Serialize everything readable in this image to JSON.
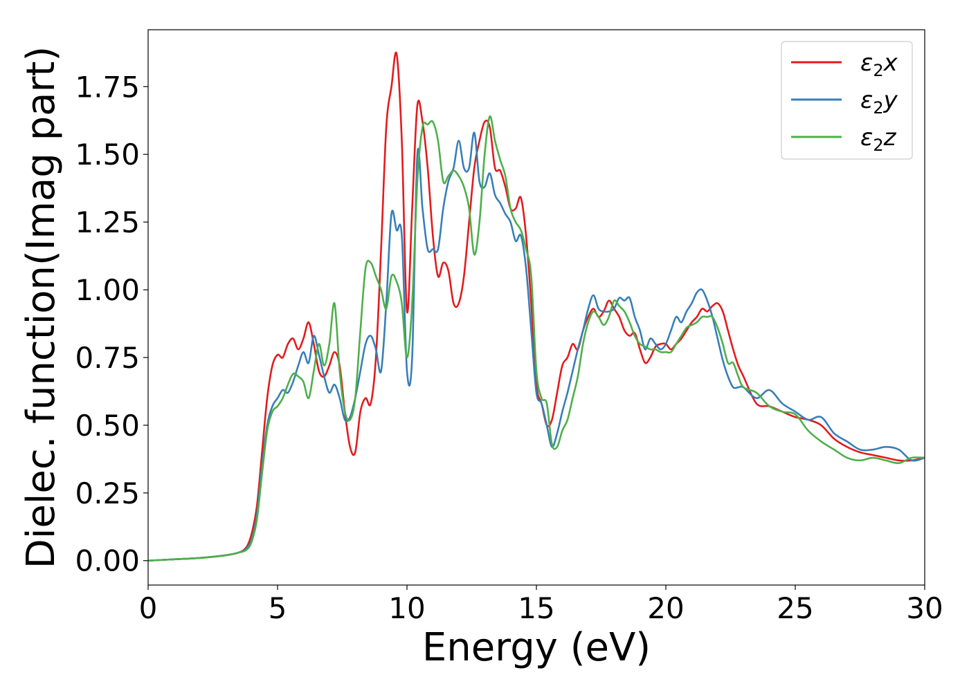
{
  "chart_data": {
    "type": "line",
    "title": "",
    "xlabel": "Energy (eV)",
    "ylabel": "Dielec. function(Imag part)",
    "xlim": [
      0,
      30
    ],
    "ylim": [
      -0.09,
      1.96
    ],
    "xticks": [
      0,
      5,
      10,
      15,
      20,
      25,
      30
    ],
    "xtick_labels": [
      "0",
      "5",
      "10",
      "15",
      "20",
      "25",
      "30"
    ],
    "yticks": [
      0.0,
      0.25,
      0.5,
      0.75,
      1.0,
      1.25,
      1.5,
      1.75
    ],
    "ytick_labels": [
      "0.00",
      "0.25",
      "0.50",
      "0.75",
      "1.00",
      "1.25",
      "1.50",
      "1.75"
    ],
    "grid": false,
    "legend_position": "top-right",
    "series": [
      {
        "name": "ε2x",
        "legend_base": "ε",
        "legend_sub": "2",
        "legend_var": "x",
        "color": "#e41a1c",
        "x": [
          0,
          1,
          2,
          3,
          3.5,
          3.8,
          4.0,
          4.2,
          4.4,
          4.6,
          4.8,
          5.0,
          5.2,
          5.4,
          5.6,
          5.8,
          6.0,
          6.2,
          6.4,
          6.6,
          6.8,
          7.0,
          7.2,
          7.4,
          7.6,
          7.8,
          8.0,
          8.2,
          8.4,
          8.6,
          8.8,
          9.0,
          9.2,
          9.4,
          9.6,
          9.8,
          10.0,
          10.2,
          10.4,
          10.6,
          10.8,
          11.0,
          11.2,
          11.4,
          11.6,
          11.8,
          12.0,
          12.2,
          12.4,
          12.6,
          12.8,
          13.0,
          13.2,
          13.4,
          13.6,
          13.8,
          14.0,
          14.2,
          14.4,
          14.6,
          14.8,
          15.0,
          15.2,
          15.4,
          15.6,
          15.8,
          16.0,
          16.2,
          16.4,
          16.6,
          16.8,
          17.0,
          17.2,
          17.4,
          17.6,
          17.8,
          18.0,
          18.2,
          18.4,
          18.6,
          18.8,
          19.0,
          19.2,
          19.4,
          19.6,
          19.8,
          20.0,
          20.2,
          20.4,
          20.6,
          20.8,
          21.0,
          21.2,
          21.4,
          21.6,
          21.8,
          22.0,
          22.2,
          22.4,
          22.6,
          22.8,
          23.0,
          23.5,
          24.0,
          24.5,
          25.0,
          25.5,
          26.0,
          26.5,
          27.0,
          27.5,
          28.0,
          28.5,
          29.0,
          29.5,
          30.0
        ],
        "y": [
          0.0,
          0.005,
          0.01,
          0.02,
          0.03,
          0.05,
          0.1,
          0.2,
          0.4,
          0.6,
          0.72,
          0.76,
          0.75,
          0.8,
          0.82,
          0.78,
          0.82,
          0.88,
          0.8,
          0.7,
          0.68,
          0.72,
          0.77,
          0.72,
          0.55,
          0.42,
          0.4,
          0.55,
          0.6,
          0.58,
          0.75,
          1.15,
          1.6,
          1.75,
          1.87,
          1.55,
          0.92,
          1.3,
          1.68,
          1.62,
          1.45,
          1.2,
          1.05,
          1.1,
          1.07,
          0.95,
          0.95,
          1.05,
          1.25,
          1.45,
          1.55,
          1.62,
          1.6,
          1.45,
          1.44,
          1.38,
          1.3,
          1.3,
          1.34,
          1.2,
          0.95,
          0.65,
          0.58,
          0.5,
          0.52,
          0.62,
          0.72,
          0.75,
          0.8,
          0.78,
          0.85,
          0.9,
          0.93,
          0.9,
          0.92,
          0.96,
          0.93,
          0.9,
          0.85,
          0.83,
          0.84,
          0.78,
          0.73,
          0.75,
          0.79,
          0.8,
          0.8,
          0.78,
          0.8,
          0.82,
          0.85,
          0.88,
          0.9,
          0.93,
          0.92,
          0.94,
          0.95,
          0.92,
          0.85,
          0.78,
          0.72,
          0.68,
          0.58,
          0.57,
          0.55,
          0.53,
          0.52,
          0.5,
          0.45,
          0.42,
          0.4,
          0.39,
          0.38,
          0.37,
          0.37,
          0.38
        ]
      },
      {
        "name": "ε2y",
        "legend_base": "ε",
        "legend_sub": "2",
        "legend_var": "y",
        "color": "#377eb8",
        "x": [
          0,
          1,
          2,
          3,
          3.5,
          3.8,
          4.0,
          4.2,
          4.4,
          4.6,
          4.8,
          5.0,
          5.2,
          5.4,
          5.6,
          5.8,
          6.0,
          6.2,
          6.4,
          6.6,
          6.8,
          7.0,
          7.2,
          7.4,
          7.6,
          7.8,
          8.0,
          8.2,
          8.4,
          8.6,
          8.8,
          9.0,
          9.2,
          9.4,
          9.6,
          9.8,
          10.0,
          10.2,
          10.4,
          10.6,
          10.8,
          11.0,
          11.2,
          11.4,
          11.6,
          11.8,
          12.0,
          12.2,
          12.4,
          12.6,
          12.8,
          13.0,
          13.2,
          13.4,
          13.6,
          13.8,
          14.0,
          14.2,
          14.4,
          14.6,
          14.8,
          15.0,
          15.2,
          15.4,
          15.6,
          15.8,
          16.0,
          16.2,
          16.4,
          16.6,
          16.8,
          17.0,
          17.2,
          17.4,
          17.6,
          17.8,
          18.0,
          18.2,
          18.4,
          18.6,
          18.8,
          19.0,
          19.2,
          19.4,
          19.6,
          19.8,
          20.0,
          20.2,
          20.4,
          20.6,
          20.8,
          21.0,
          21.2,
          21.4,
          21.6,
          21.8,
          22.0,
          22.2,
          22.4,
          22.6,
          22.8,
          23.0,
          23.5,
          24.0,
          24.5,
          25.0,
          25.5,
          26.0,
          26.5,
          27.0,
          27.5,
          28.0,
          28.5,
          29.0,
          29.5,
          30.0
        ],
        "y": [
          0.0,
          0.005,
          0.01,
          0.02,
          0.03,
          0.045,
          0.08,
          0.17,
          0.35,
          0.5,
          0.57,
          0.6,
          0.63,
          0.62,
          0.66,
          0.72,
          0.77,
          0.73,
          0.83,
          0.76,
          0.68,
          0.62,
          0.65,
          0.6,
          0.52,
          0.53,
          0.6,
          0.7,
          0.8,
          0.83,
          0.78,
          0.7,
          0.95,
          1.28,
          1.22,
          1.2,
          0.7,
          0.75,
          1.5,
          1.3,
          1.15,
          1.15,
          1.15,
          1.3,
          1.4,
          1.45,
          1.55,
          1.45,
          1.45,
          1.58,
          1.4,
          1.38,
          1.43,
          1.35,
          1.32,
          1.28,
          1.25,
          1.18,
          1.2,
          1.08,
          0.85,
          0.62,
          0.58,
          0.5,
          0.42,
          0.47,
          0.55,
          0.62,
          0.7,
          0.78,
          0.85,
          0.93,
          0.98,
          0.93,
          0.92,
          0.92,
          0.93,
          0.97,
          0.96,
          0.97,
          0.9,
          0.85,
          0.78,
          0.82,
          0.8,
          0.78,
          0.8,
          0.85,
          0.9,
          0.88,
          0.92,
          0.95,
          0.99,
          1.0,
          0.96,
          0.9,
          0.82,
          0.74,
          0.68,
          0.64,
          0.64,
          0.64,
          0.6,
          0.63,
          0.58,
          0.55,
          0.52,
          0.53,
          0.47,
          0.44,
          0.41,
          0.41,
          0.42,
          0.41,
          0.37,
          0.38
        ]
      },
      {
        "name": "ε2z",
        "legend_base": "ε",
        "legend_sub": "2",
        "legend_var": "z",
        "color": "#4daf4a",
        "x": [
          0,
          1,
          2,
          3,
          3.5,
          3.8,
          4.0,
          4.2,
          4.4,
          4.6,
          4.8,
          5.0,
          5.2,
          5.4,
          5.6,
          5.8,
          6.0,
          6.2,
          6.4,
          6.6,
          6.8,
          7.0,
          7.2,
          7.4,
          7.6,
          7.8,
          8.0,
          8.2,
          8.4,
          8.6,
          8.8,
          9.0,
          9.2,
          9.4,
          9.6,
          9.8,
          10.0,
          10.2,
          10.4,
          10.6,
          10.8,
          11.0,
          11.2,
          11.4,
          11.6,
          11.8,
          12.0,
          12.2,
          12.4,
          12.6,
          12.8,
          13.0,
          13.2,
          13.4,
          13.6,
          13.8,
          14.0,
          14.2,
          14.4,
          14.6,
          14.8,
          15.0,
          15.2,
          15.4,
          15.6,
          15.8,
          16.0,
          16.2,
          16.4,
          16.6,
          16.8,
          17.0,
          17.2,
          17.4,
          17.6,
          17.8,
          18.0,
          18.2,
          18.4,
          18.6,
          18.8,
          19.0,
          19.2,
          19.4,
          19.6,
          19.8,
          20.0,
          20.2,
          20.4,
          20.6,
          20.8,
          21.0,
          21.2,
          21.4,
          21.6,
          21.8,
          22.0,
          22.2,
          22.4,
          22.6,
          22.8,
          23.0,
          23.5,
          24.0,
          24.5,
          25.0,
          25.5,
          26.0,
          26.5,
          27.0,
          27.5,
          28.0,
          28.5,
          29.0,
          29.5,
          30.0
        ],
        "y": [
          0.0,
          0.005,
          0.01,
          0.02,
          0.03,
          0.04,
          0.07,
          0.15,
          0.32,
          0.48,
          0.55,
          0.57,
          0.6,
          0.65,
          0.69,
          0.68,
          0.66,
          0.6,
          0.7,
          0.8,
          0.72,
          0.8,
          0.95,
          0.7,
          0.55,
          0.52,
          0.6,
          0.85,
          1.08,
          1.1,
          1.05,
          1.0,
          0.93,
          1.05,
          1.03,
          0.95,
          0.75,
          0.95,
          1.4,
          1.6,
          1.61,
          1.62,
          1.55,
          1.4,
          1.42,
          1.44,
          1.42,
          1.38,
          1.3,
          1.13,
          1.25,
          1.5,
          1.64,
          1.55,
          1.48,
          1.42,
          1.3,
          1.25,
          1.22,
          1.15,
          1.05,
          0.7,
          0.6,
          0.58,
          0.43,
          0.42,
          0.48,
          0.52,
          0.6,
          0.68,
          0.8,
          0.88,
          0.92,
          0.9,
          0.87,
          0.9,
          0.96,
          0.94,
          0.92,
          0.88,
          0.83,
          0.8,
          0.79,
          0.78,
          0.78,
          0.77,
          0.77,
          0.77,
          0.8,
          0.83,
          0.86,
          0.87,
          0.88,
          0.9,
          0.9,
          0.9,
          0.86,
          0.8,
          0.73,
          0.73,
          0.68,
          0.64,
          0.62,
          0.57,
          0.55,
          0.54,
          0.48,
          0.44,
          0.41,
          0.38,
          0.37,
          0.38,
          0.37,
          0.36,
          0.38,
          0.38
        ]
      }
    ]
  }
}
